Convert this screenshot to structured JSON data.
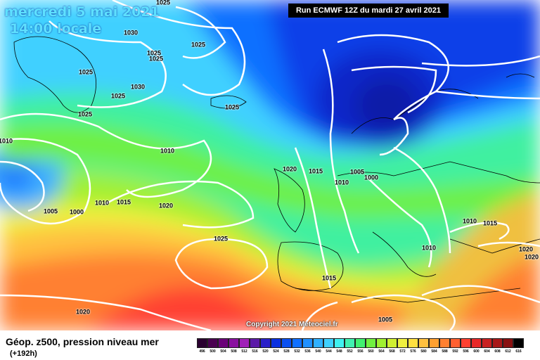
{
  "header": {
    "date": "mercredi 5 mai 2021",
    "time": "14:00 locale",
    "run": "Run ECMWF 12Z du mardi 27 avril 2021"
  },
  "copyright": "Copyright 2021 Meteociel.fr",
  "footer": {
    "title": "Géop. z500, pression niveau mer",
    "subtitle": "(+192h)"
  },
  "isobar_labels": [
    "1025",
    "1030",
    "1025",
    "1025",
    "1025",
    "1025",
    "1030",
    "1025",
    "1025",
    "1025",
    "1010",
    "1010",
    "1020",
    "1015",
    "1005",
    "1000",
    "1010",
    "1005",
    "1000",
    "1010",
    "1015",
    "1020",
    "1025",
    "1010",
    "1015",
    "1010",
    "1020",
    "1020",
    "1015",
    "1020",
    "1005"
  ],
  "color_scale": {
    "labels": [
      "496",
      "500",
      "504",
      "508",
      "512",
      "516",
      "520",
      "524",
      "528",
      "532",
      "536",
      "540",
      "544",
      "548",
      "552",
      "556",
      "560",
      "564",
      "568",
      "572",
      "576",
      "580",
      "584",
      "588",
      "592",
      "596",
      "600",
      "604",
      "608",
      "612",
      "616"
    ],
    "colors": [
      "#2a0030",
      "#4a0050",
      "#6a0078",
      "#8a10a0",
      "#a020b8",
      "#5c1aa8",
      "#2a20c8",
      "#0a30e0",
      "#0a50f0",
      "#1070ff",
      "#2090ff",
      "#30b0ff",
      "#40d0ff",
      "#40f0f0",
      "#40f0b0",
      "#40f070",
      "#70f040",
      "#a0f030",
      "#d0f030",
      "#f0f040",
      "#ffe040",
      "#ffc040",
      "#ffa030",
      "#ff8030",
      "#ff6030",
      "#ff4030",
      "#e82828",
      "#c82020",
      "#a81818",
      "#881010",
      "#000000"
    ]
  }
}
